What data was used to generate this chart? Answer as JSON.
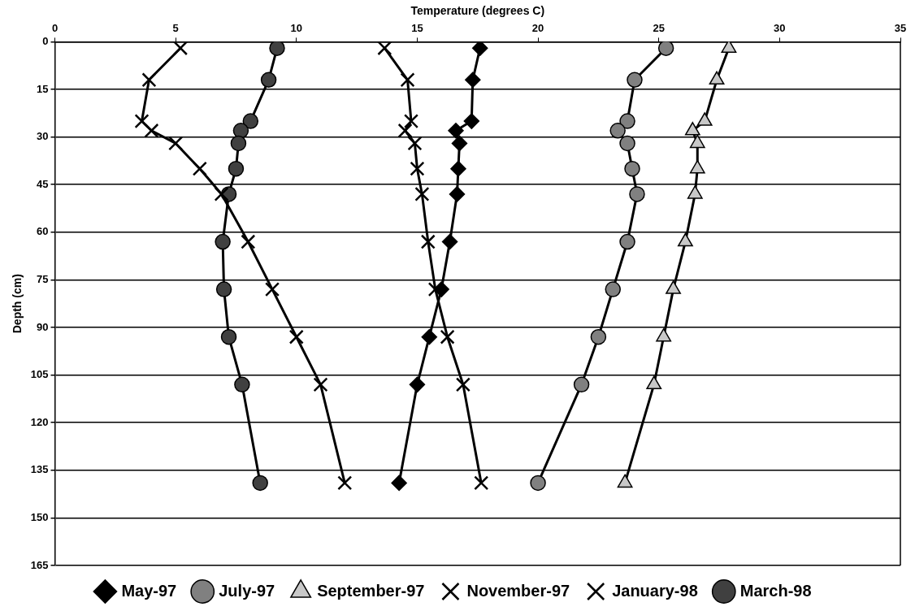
{
  "chart_data": {
    "type": "line",
    "xlabel": "Temperature (degrees C)",
    "ylabel": "Depth (cm)",
    "xlim": [
      0,
      35
    ],
    "xticks": [
      0,
      5,
      10,
      15,
      20,
      25,
      30,
      35
    ],
    "ylim": [
      165,
      0
    ],
    "yticks": [
      0,
      15,
      30,
      45,
      60,
      75,
      90,
      105,
      120,
      135,
      150,
      165
    ],
    "grid": "y",
    "legend": "bottom",
    "line_style": "solid",
    "series": [
      {
        "name": "May-97",
        "color": "#000000",
        "marker": "diamond",
        "x": [
          17.6,
          17.3,
          17.25,
          16.6,
          16.75,
          16.7,
          16.65,
          16.35,
          16.0,
          15.5,
          15.0,
          14.25
        ],
        "values": [
          2,
          12,
          25,
          28,
          32,
          40,
          48,
          63,
          78,
          93,
          108,
          139
        ]
      },
      {
        "name": "July-97",
        "color": "#808080",
        "marker": "circle",
        "x": [
          25.3,
          24.0,
          23.7,
          23.3,
          23.7,
          23.9,
          24.1,
          23.7,
          23.1,
          22.5,
          21.8,
          20.0
        ],
        "values": [
          2,
          12,
          25,
          28,
          32,
          40,
          48,
          63,
          78,
          93,
          108,
          139
        ]
      },
      {
        "name": "September-97",
        "color": "#c8c8c8",
        "marker": "triangle",
        "x": [
          27.9,
          27.4,
          26.9,
          26.4,
          26.6,
          26.6,
          26.5,
          26.1,
          25.6,
          25.2,
          24.8,
          23.6
        ],
        "values": [
          2,
          12,
          25,
          28,
          32,
          40,
          48,
          63,
          78,
          93,
          108,
          139
        ]
      },
      {
        "name": "November-97",
        "color": "#000000",
        "marker": "cross",
        "x": [
          13.65,
          14.6,
          14.75,
          14.5,
          14.9,
          15.0,
          15.2,
          15.45,
          15.75,
          16.25,
          16.9,
          17.65
        ],
        "values": [
          2,
          12,
          25,
          28,
          32,
          40,
          48,
          63,
          78,
          93,
          108,
          139
        ]
      },
      {
        "name": "January-98",
        "color": "#000000",
        "marker": "cross",
        "x": [
          5.2,
          3.9,
          3.6,
          4.0,
          5.0,
          6.0,
          6.9,
          8.0,
          9.0,
          10.0,
          11.0,
          12.0
        ],
        "values": [
          2,
          12,
          25,
          28,
          32,
          40,
          48,
          63,
          78,
          93,
          108,
          139
        ]
      },
      {
        "name": "March-98",
        "color": "#404040",
        "marker": "circle",
        "x": [
          9.2,
          8.85,
          8.1,
          7.7,
          7.6,
          7.5,
          7.2,
          6.95,
          7.0,
          7.2,
          7.75,
          8.5
        ],
        "values": [
          2,
          12,
          25,
          28,
          32,
          40,
          48,
          63,
          78,
          93,
          108,
          139
        ]
      }
    ]
  }
}
